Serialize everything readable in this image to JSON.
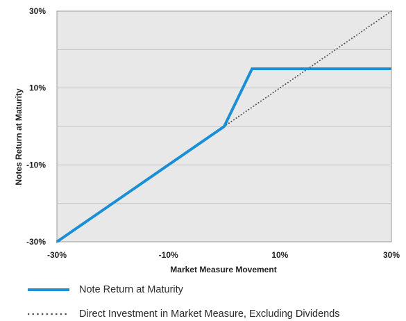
{
  "chart_data": {
    "type": "line",
    "title": "",
    "xlabel": "Market Measure Movement",
    "ylabel": "Notes Return at Maturity",
    "xlim": [
      -30,
      30
    ],
    "ylim": [
      -30,
      30
    ],
    "x_ticks": [
      "-30%",
      "-10%",
      "10%",
      "30%"
    ],
    "x_tick_values": [
      -30,
      -10,
      10,
      30
    ],
    "y_ticks": [
      "30%",
      "10%",
      "-10%",
      "-30%"
    ],
    "y_tick_values": [
      30,
      10,
      -10,
      -30
    ],
    "grid": "horizontal",
    "legend_placement": "bottom",
    "background_color": "#e8e8e8",
    "series": [
      {
        "name": "Note Return at Maturity",
        "style": "solid",
        "color": "#1a8fd6",
        "points": [
          [
            -30,
            -30
          ],
          [
            0,
            0
          ],
          [
            5,
            15
          ],
          [
            30,
            15
          ]
        ]
      },
      {
        "name": "Direct Investment in Market Measure, Excluding Dividends",
        "style": "dotted",
        "color": "#555555",
        "points": [
          [
            -30,
            -30
          ],
          [
            30,
            30
          ]
        ]
      }
    ]
  }
}
